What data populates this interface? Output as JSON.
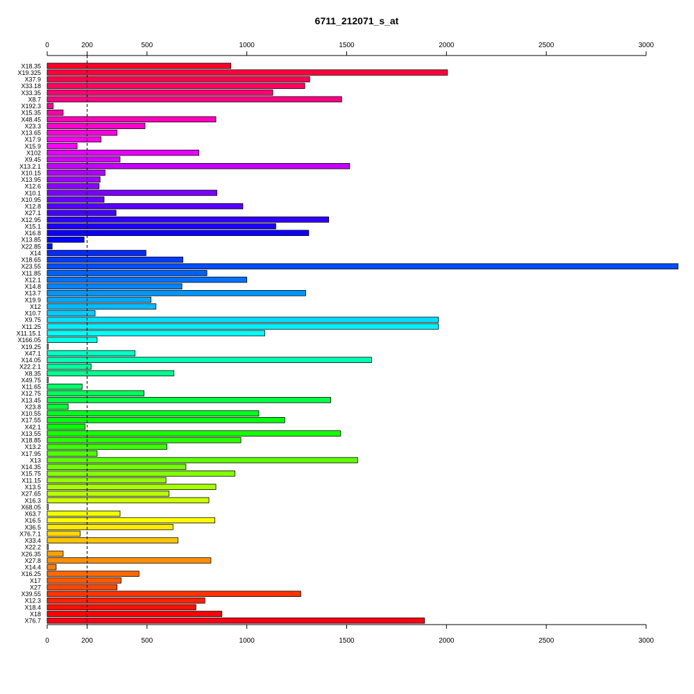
{
  "chart_data": {
    "type": "bar",
    "orientation": "horizontal",
    "title": "6711_212071_s_at",
    "xlabel": "",
    "ylabel": "",
    "xlim": [
      0,
      3150
    ],
    "xticks": [
      0,
      200,
      500,
      1000,
      1500,
      2000,
      2500,
      3000
    ],
    "xtick_labels": [
      "0",
      "200",
      "500",
      "1000",
      "1500",
      "2000",
      "2500",
      "3000"
    ],
    "axes": "top and bottom",
    "reference_line": {
      "x": 200,
      "style": "dashed"
    },
    "bar_colors": "rainbow gradient from red through magenta, blue, cyan, green, yellow, orange back to red",
    "categories": [
      "X18.35",
      "X19.325",
      "X37.9",
      "X33.18",
      "X33.35",
      "X8.7",
      "X192.3",
      "X15.35",
      "X48.45",
      "X23.3",
      "X13.65",
      "X17.9",
      "X15.9",
      "X102",
      "X9.45",
      "X13.2.1",
      "X10.15",
      "X13.95",
      "X12.6",
      "X10.1",
      "X10.95",
      "X12.8",
      "X27.1",
      "X12.95",
      "X15.1",
      "X16.8",
      "X13.85",
      "X22.85",
      "X14",
      "X18.65",
      "X23.55",
      "X11.85",
      "X12.1",
      "X14.8",
      "X13.7",
      "X19.9",
      "X12",
      "X10.7",
      "X9.75",
      "X11.25",
      "X11.15.1",
      "X166.05",
      "X19.25",
      "X47.1",
      "X14.05",
      "X22.2.1",
      "X8.35",
      "X49.75",
      "X11.65",
      "X12.75",
      "X13.45",
      "X23.8",
      "X10.55",
      "X17.55",
      "X42.1",
      "X13.55",
      "X18.85",
      "X13.2",
      "X17.95",
      "X13",
      "X14.35",
      "X15.75",
      "X11.15",
      "X13.5",
      "X27.65",
      "X16.3",
      "X68.05",
      "X63.7",
      "X16.5",
      "X36.5",
      "X76.7.1",
      "X33.4",
      "X22.2",
      "X26.35",
      "X27.8",
      "X14.4",
      "X16.25",
      "X17",
      "X27",
      "X39.55",
      "X12.3",
      "X18.4",
      "X18",
      "X76.7"
    ],
    "values": [
      920,
      2005,
      1315,
      1290,
      1130,
      1475,
      30,
      80,
      845,
      490,
      350,
      270,
      150,
      760,
      365,
      1515,
      290,
      265,
      260,
      850,
      285,
      980,
      345,
      1410,
      1145,
      1310,
      185,
      25,
      495,
      680,
      3160,
      800,
      1000,
      675,
      1295,
      520,
      545,
      240,
      1960,
      1960,
      1090,
      250,
      5,
      440,
      1625,
      220,
      635,
      5,
      175,
      485,
      1420,
      105,
      1060,
      1190,
      190,
      1470,
      970,
      600,
      250,
      1555,
      695,
      940,
      595,
      845,
      610,
      810,
      5,
      365,
      840,
      630,
      165,
      655,
      5,
      80,
      820,
      45,
      460,
      370,
      350,
      1270,
      790,
      745,
      875,
      1890
    ]
  }
}
